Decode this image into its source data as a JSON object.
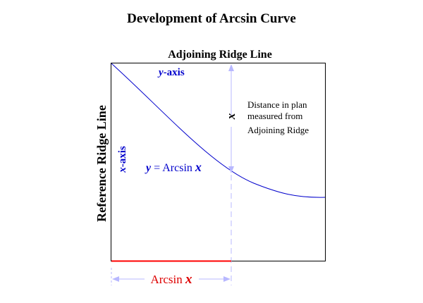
{
  "title": "Development of Arcsin Curve",
  "top_label": "Adjoining Ridge Line",
  "left_label": "Reference Ridge Line",
  "y_axis_var": "y",
  "y_axis_word": "-axis",
  "x_axis_var": "x",
  "x_axis_word": "-axis",
  "curve_label_lhs": "y",
  "curve_label_eq": " = Arcsin ",
  "curve_label_rhs": "x",
  "dimension_var": "x",
  "note_lines": [
    "Distance in plan",
    "measured from",
    "Adjoining Ridge"
  ],
  "base_label_word": "Arcsin ",
  "base_label_var": "x",
  "colors": {
    "frame": "#000000",
    "curve": "#0000cc",
    "blue_text": "#0000cc",
    "dimension": "#b8b8ff",
    "base_line": "#ff0000",
    "base_text": "#dd0000"
  }
}
